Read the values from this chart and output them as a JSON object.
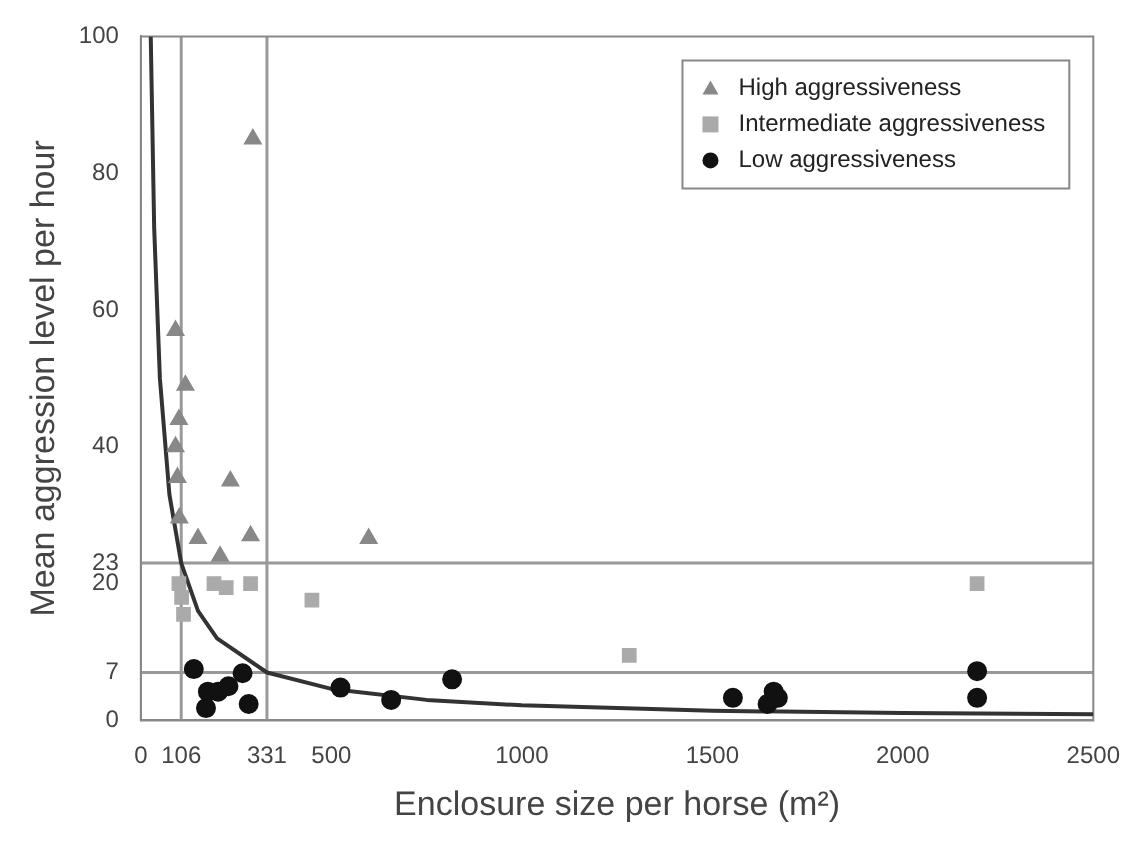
{
  "chart_data": {
    "type": "scatter",
    "xlabel": "Enclosure size per horse (m²)",
    "ylabel": "Mean aggression level per hour",
    "xlim": [
      0,
      2500
    ],
    "ylim": [
      0,
      100
    ],
    "xticks": [
      0,
      106,
      331,
      500,
      1000,
      1500,
      2000,
      2500
    ],
    "yticks": [
      0,
      7,
      20,
      23,
      40,
      60,
      80,
      100
    ],
    "grid": false,
    "legend": "top right",
    "series": [
      {
        "name": "High aggressiveness",
        "color": "#888888",
        "marker": "triangle",
        "x": [
          294,
          91,
          117,
          100,
          91,
          96,
          101,
          235,
          150,
          208,
          288,
          598
        ],
        "values": [
          85,
          57,
          49,
          44,
          40,
          35.5,
          29.6,
          35,
          26.6,
          24,
          27,
          26.6
        ]
      },
      {
        "name": "Intermediate aggressiveness",
        "color": "#aaaaaa",
        "marker": "square",
        "x": [
          100,
          107,
          112,
          192,
          224,
          288,
          449,
          1282,
          2195
        ],
        "values": [
          20,
          18,
          15.5,
          20,
          19.4,
          20,
          17.6,
          9.5,
          20
        ]
      },
      {
        "name": "Low aggressiveness",
        "color": "#111111",
        "marker": "circle",
        "x": [
          139,
          176,
          171,
          203,
          230,
          267,
          283,
          524,
          657,
          817,
          1554,
          1645,
          1661,
          1672,
          2195,
          2195
        ],
        "values": [
          7.5,
          4.2,
          1.8,
          4.2,
          5,
          6.9,
          2.4,
          4.8,
          3,
          6,
          3.3,
          2.4,
          4.2,
          3.3,
          7.2,
          3.3
        ]
      },
      {
        "type": "line",
        "color": "#333333",
        "marker": "none",
        "x": [
          26,
          35,
          50,
          75,
          106,
          150,
          200,
          331,
          500,
          750,
          1000,
          1500,
          2000,
          2500
        ],
        "values": [
          100,
          72,
          50,
          33,
          23,
          16,
          12,
          7,
          4.6,
          3,
          2.2,
          1.4,
          1.1,
          0.9
        ]
      }
    ],
    "ref_lines": [
      {
        "axis": "y",
        "value": 23,
        "color": "#999999"
      },
      {
        "axis": "y",
        "value": 7,
        "color": "#999999"
      },
      {
        "axis": "x",
        "value": 106,
        "color": "#999999"
      },
      {
        "axis": "x",
        "value": 331,
        "color": "#999999"
      }
    ]
  }
}
